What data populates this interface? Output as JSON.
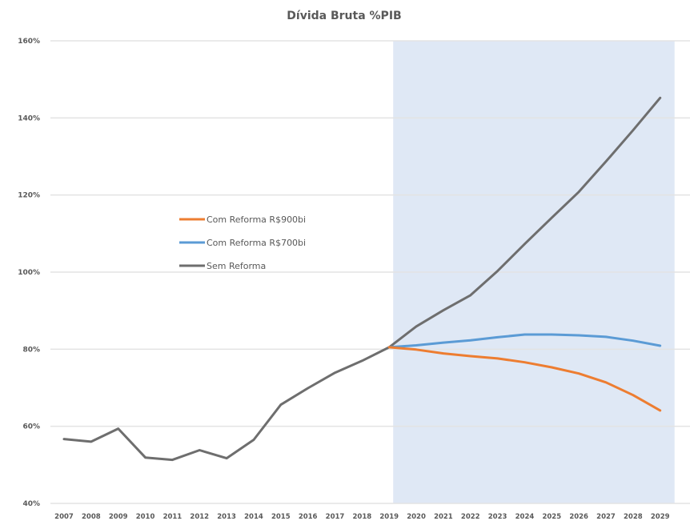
{
  "chart_data": {
    "type": "line",
    "title": "Dívida Bruta %PIB",
    "xlabel": "",
    "ylabel": "",
    "ylim": [
      40,
      160
    ],
    "yticks": [
      40,
      60,
      80,
      100,
      120,
      140,
      160
    ],
    "ytick_labels": [
      "40%",
      "60%",
      "80%",
      "100%",
      "120%",
      "140%",
      "160%"
    ],
    "grid": true,
    "legend_position": "center-left",
    "shaded_region": {
      "from": "2019",
      "to": "2029",
      "color": "#dfe8f5"
    },
    "categories": [
      "2007",
      "2008",
      "2009",
      "2010",
      "2011",
      "2012",
      "2013",
      "2014",
      "2015",
      "2016",
      "2017",
      "2018",
      "2019",
      "2020",
      "2021",
      "2022",
      "2023",
      "2024",
      "2025",
      "2026",
      "2027",
      "2028",
      "2029"
    ],
    "series": [
      {
        "name": "Com Reforma R$900bi",
        "color": "#ed7d31",
        "values": [
          null,
          null,
          null,
          null,
          null,
          null,
          null,
          null,
          null,
          null,
          null,
          null,
          80.5,
          79.9,
          78.9,
          78.2,
          77.6,
          76.6,
          75.3,
          73.7,
          71.4,
          68.1,
          64.1
        ]
      },
      {
        "name": "Com Reforma R$700bi",
        "color": "#5b9bd5",
        "values": [
          null,
          null,
          null,
          null,
          null,
          null,
          null,
          null,
          null,
          null,
          null,
          null,
          80.5,
          81.0,
          81.7,
          82.3,
          83.1,
          83.8,
          83.8,
          83.6,
          83.2,
          82.2,
          80.9
        ]
      },
      {
        "name": "Sem Reforma",
        "color": "#6e6e6e",
        "values": [
          56.7,
          56.0,
          59.4,
          51.9,
          51.3,
          53.8,
          51.7,
          56.5,
          65.6,
          69.9,
          73.9,
          77.0,
          80.5,
          85.9,
          90.1,
          94.0,
          100.3,
          107.3,
          114.1,
          120.8,
          128.7,
          136.8,
          145.2
        ]
      }
    ]
  }
}
